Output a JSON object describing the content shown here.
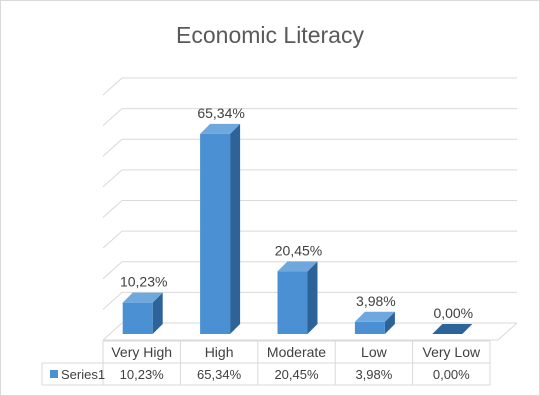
{
  "chart_data": {
    "type": "bar",
    "title": "Economic Literacy",
    "categories": [
      "Very High",
      "High",
      "Moderate",
      "Low",
      "Very Low"
    ],
    "series": [
      {
        "name": "Series1",
        "values": [
          10.23,
          65.34,
          20.45,
          3.98,
          0.0
        ],
        "labels": [
          "10,23%",
          "65,34%",
          "20,45%",
          "3,98%",
          "0,00%"
        ]
      }
    ],
    "ylim": [
      0,
      80
    ],
    "grid": true,
    "three_d": true,
    "data_table": true,
    "colors": {
      "bar_front": "#4a90d2",
      "bar_side": "#2c6499",
      "bar_top": "#6ea8dd",
      "grid": "#d9d9d9"
    }
  }
}
